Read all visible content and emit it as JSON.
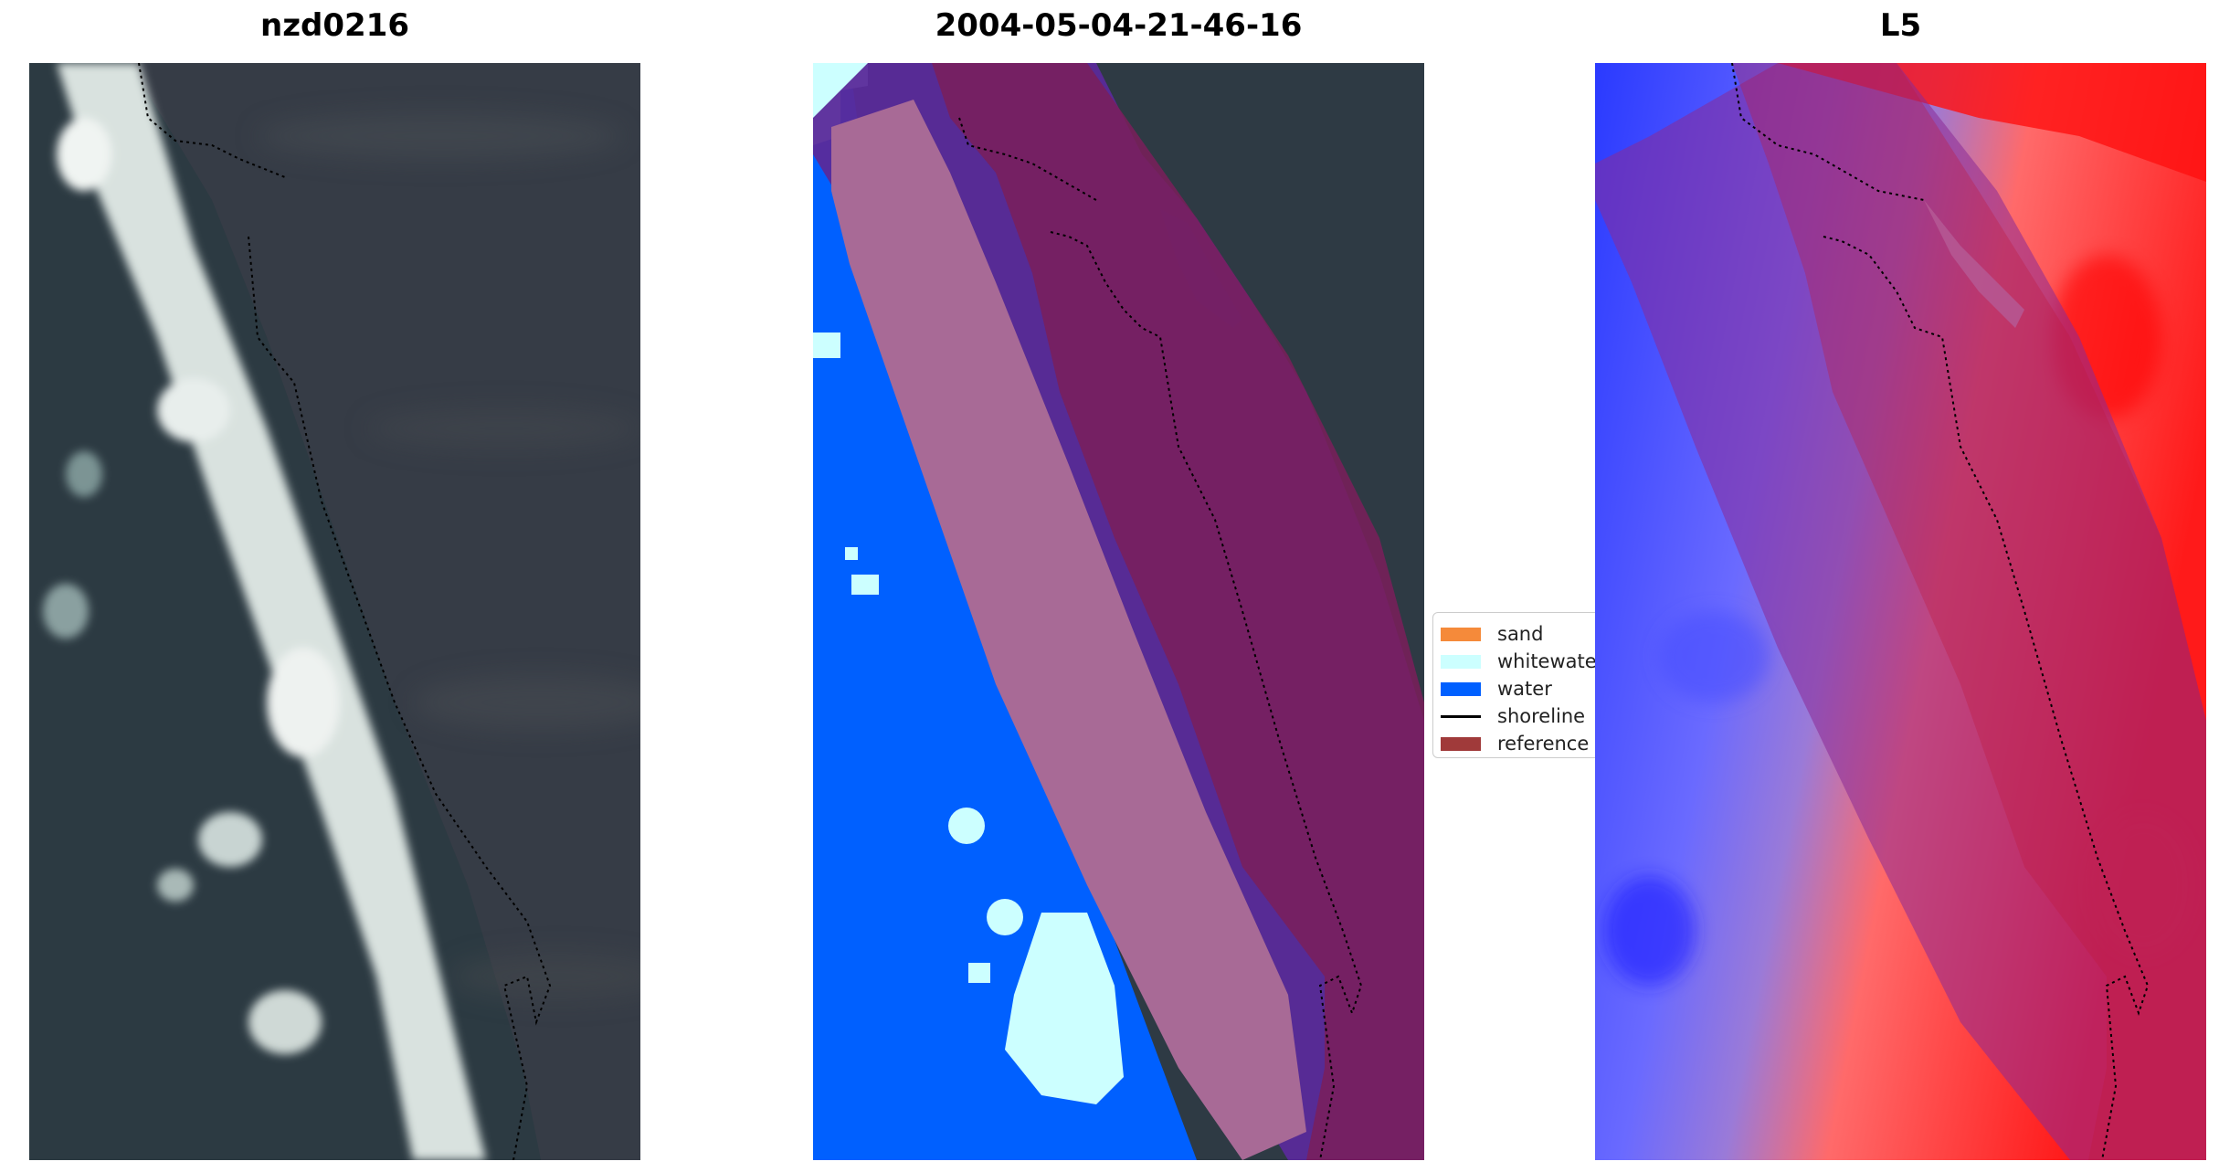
{
  "panels": [
    {
      "title": "nzd0216"
    },
    {
      "title": "2004-05-04-21-46-16"
    },
    {
      "title": "L5"
    }
  ],
  "legend": {
    "items": [
      {
        "label": "sand",
        "color": "#f58a3a",
        "kind": "patch"
      },
      {
        "label": "whitewater",
        "color": "#ccffff",
        "kind": "patch"
      },
      {
        "label": "water",
        "color": "#0060ff",
        "kind": "patch"
      },
      {
        "label": "shoreline",
        "color": "#000000",
        "kind": "line"
      },
      {
        "label": "reference shoreline buffer",
        "color": "#a03a3a",
        "kind": "patch"
      }
    ]
  },
  "colors": {
    "ocean_dark": "#2e3d45",
    "land_dark": "#39404a",
    "surf_white": "#e6eeec",
    "buffer_overlay": "#8a3a62",
    "sand_region": "#a86a96",
    "band_purple": "#5a2a9a",
    "index_red": "#ff1a1a",
    "index_blue": "#2a3aff"
  }
}
